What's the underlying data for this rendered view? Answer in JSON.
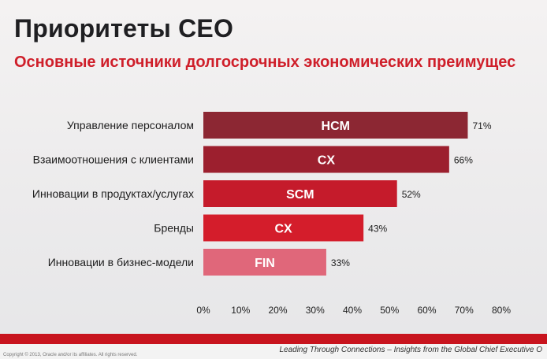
{
  "title": "Приоритеты CEO",
  "subtitle": "Основные источники долгосрочных экономических преимущес",
  "chart_data": {
    "type": "bar",
    "orientation": "horizontal",
    "categories": [
      "Управление персоналом",
      "Взаимоотношения с клиентами",
      "Инновации в продуктах/услугах",
      "Бренды",
      "Инновации в бизнес-модели"
    ],
    "values": [
      71,
      66,
      52,
      43,
      33
    ],
    "value_labels": [
      "71%",
      "66%",
      "52%",
      "43%",
      "33%"
    ],
    "bar_labels": [
      "HCM",
      "CX",
      "SCM",
      "CX",
      "FIN"
    ],
    "bar_colors": [
      "#8c2733",
      "#9c1f2e",
      "#c51b2b",
      "#d41d2b",
      "#e0677a"
    ],
    "xlim": [
      0,
      80
    ],
    "x_ticks": [
      0,
      10,
      20,
      30,
      40,
      50,
      60,
      70,
      80
    ],
    "x_tick_labels": [
      "0%",
      "10%",
      "20%",
      "30%",
      "40%",
      "50%",
      "60%",
      "70%",
      "80%"
    ],
    "grid": false,
    "legend": false
  },
  "footer": {
    "text": "Leading Through Connections – Insights from the Global Chief Executive O",
    "copyright": "Copyright © 2013, Oracle and/or its affiliates. All rights reserved."
  },
  "colors": {
    "accent": "#c8141e",
    "subtitle": "#cf1f2a"
  }
}
